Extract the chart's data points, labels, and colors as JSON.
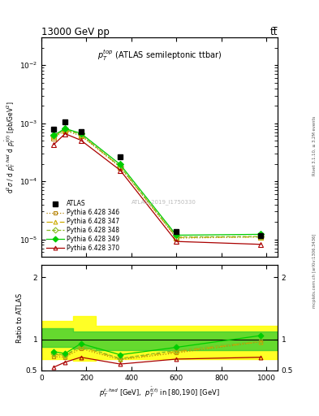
{
  "title_left": "13000 GeV pp",
  "title_right": "tt̅",
  "plot_title": "$p_T^{top}$ (ATLAS semileptonic ttbar)",
  "ylabel_main": "d$^2$$\\sigma$ / d $p_T^{t,had}$ d $p_T^{\\bar{t}(t)}$ [pb/GeV$^2$]",
  "ylabel_ratio": "Ratio to ATLAS",
  "xlabel": "$p_T^{t,had}$ [GeV],  $p_T^{\\bar{t}bar(t)}$ in [80,190] [GeV]",
  "watermark": "ATLAS_2019_I1750330",
  "right_label": "mcplots.cern.ch [arXiv:1306.3436]",
  "rivet_label": "Rivet 3.1.10, ≥ 3.2M events",
  "x_values": [
    55,
    105,
    175,
    350,
    600,
    975
  ],
  "atlas_y": [
    0.00078,
    0.00105,
    0.00072,
    0.00026,
    1.35e-05,
    1.15e-05
  ],
  "py346_y": [
    0.00056,
    0.00074,
    0.00061,
    0.000175,
    1.05e-05,
    1.1e-05
  ],
  "py347_y": [
    0.00059,
    0.00077,
    0.00063,
    0.000178,
    1.08e-05,
    1.1e-05
  ],
  "py348_y": [
    0.0006,
    0.00078,
    0.00064,
    0.00018,
    1.1e-05,
    1.12e-05
  ],
  "py349_y": [
    0.00062,
    0.00081,
    0.00067,
    0.000195,
    1.18e-05,
    1.22e-05
  ],
  "py370_y": [
    0.00043,
    0.00066,
    0.00051,
    0.000155,
    9.2e-06,
    8.2e-06
  ],
  "ratio346": [
    0.72,
    0.71,
    0.85,
    0.67,
    0.78,
    0.96
  ],
  "ratio347": [
    0.76,
    0.73,
    0.88,
    0.68,
    0.8,
    0.96
  ],
  "ratio348": [
    0.77,
    0.74,
    0.89,
    0.69,
    0.82,
    0.97
  ],
  "ratio349": [
    0.8,
    0.77,
    0.93,
    0.75,
    0.87,
    1.06
  ],
  "ratio370": [
    0.55,
    0.63,
    0.71,
    0.6,
    0.68,
    0.71
  ],
  "band_x_steps": [
    0,
    80,
    140,
    240,
    430,
    750,
    1050
  ],
  "band_green_upper": [
    1.18,
    1.18,
    1.12,
    1.12,
    1.12,
    1.12,
    1.12
  ],
  "band_green_lower": [
    0.88,
    0.88,
    0.85,
    0.82,
    0.82,
    0.82,
    0.82
  ],
  "band_yellow_upper": [
    1.3,
    1.3,
    1.38,
    1.22,
    1.22,
    1.22,
    1.22
  ],
  "band_yellow_lower": [
    0.68,
    0.68,
    0.65,
    0.68,
    0.68,
    0.68,
    0.68
  ],
  "color_atlas": "#000000",
  "color_346": "#b8860b",
  "color_347": "#ccaa00",
  "color_348": "#88bb22",
  "color_349": "#00cc00",
  "color_370": "#aa0000",
  "xlim": [
    0,
    1050
  ],
  "ylim_main_lo": 5e-06,
  "ylim_main_hi": 0.03,
  "ylim_ratio_lo": 0.5,
  "ylim_ratio_hi": 2.2
}
